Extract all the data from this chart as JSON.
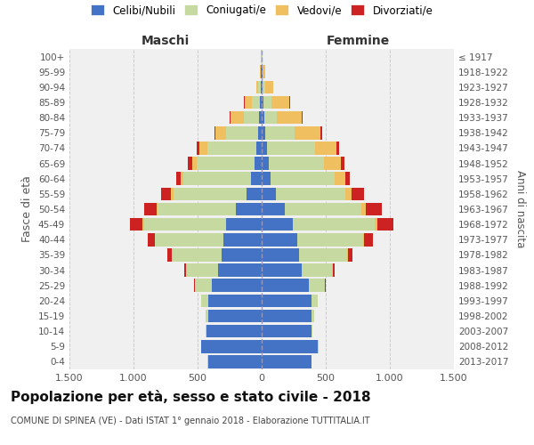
{
  "age_groups": [
    "0-4",
    "5-9",
    "10-14",
    "15-19",
    "20-24",
    "25-29",
    "30-34",
    "35-39",
    "40-44",
    "45-49",
    "50-54",
    "55-59",
    "60-64",
    "65-69",
    "70-74",
    "75-79",
    "80-84",
    "85-89",
    "90-94",
    "95-99",
    "100+"
  ],
  "birth_years": [
    "2013-2017",
    "2008-2012",
    "2003-2007",
    "1998-2002",
    "1993-1997",
    "1988-1992",
    "1983-1987",
    "1978-1982",
    "1973-1977",
    "1968-1972",
    "1963-1967",
    "1958-1962",
    "1953-1957",
    "1948-1952",
    "1943-1947",
    "1938-1942",
    "1933-1937",
    "1928-1932",
    "1923-1927",
    "1918-1922",
    "≤ 1917"
  ],
  "male_celibe": [
    420,
    470,
    430,
    420,
    420,
    390,
    340,
    310,
    300,
    280,
    200,
    120,
    80,
    55,
    45,
    30,
    20,
    15,
    8,
    4,
    2
  ],
  "male_coniugato": [
    3,
    5,
    10,
    20,
    50,
    130,
    250,
    390,
    530,
    640,
    610,
    570,
    530,
    450,
    380,
    250,
    120,
    60,
    20,
    5,
    2
  ],
  "male_vedovo": [
    0,
    0,
    0,
    0,
    0,
    1,
    2,
    3,
    5,
    8,
    10,
    15,
    20,
    40,
    60,
    80,
    100,
    60,
    15,
    3,
    1
  ],
  "male_divorziato": [
    0,
    0,
    0,
    0,
    2,
    5,
    10,
    30,
    55,
    100,
    100,
    80,
    35,
    30,
    20,
    10,
    8,
    5,
    2,
    0,
    0
  ],
  "female_celibe": [
    390,
    440,
    390,
    390,
    390,
    370,
    310,
    290,
    280,
    240,
    180,
    110,
    70,
    55,
    45,
    30,
    20,
    15,
    10,
    5,
    2
  ],
  "female_coniugato": [
    2,
    4,
    8,
    18,
    45,
    120,
    240,
    380,
    510,
    640,
    600,
    540,
    500,
    430,
    370,
    230,
    100,
    60,
    20,
    5,
    2
  ],
  "female_vedovo": [
    0,
    0,
    0,
    0,
    1,
    2,
    3,
    5,
    10,
    20,
    30,
    50,
    80,
    130,
    170,
    200,
    190,
    140,
    60,
    15,
    2
  ],
  "female_divorziato": [
    0,
    0,
    0,
    1,
    3,
    8,
    15,
    35,
    65,
    130,
    130,
    100,
    40,
    30,
    20,
    12,
    8,
    5,
    2,
    0,
    0
  ],
  "color_celibe": "#4472c4",
  "color_coniugato": "#c5d9a0",
  "color_vedovo": "#f0c060",
  "color_divorziato": "#cc2222",
  "title": "Popolazione per età, sesso e stato civile - 2018",
  "subtitle": "COMUNE DI SPINEA (VE) - Dati ISTAT 1° gennaio 2018 - Elaborazione TUTTITALIA.IT",
  "xlabel_left": "Maschi",
  "xlabel_right": "Femmine",
  "ylabel": "Fasce di età",
  "ylabel_right": "Anni di nascita",
  "xlim": 1500,
  "xticklabels": [
    "1.500",
    "1.000",
    "500",
    "0",
    "500",
    "1.000",
    "1.500"
  ],
  "bg_color": "#f0f0f0",
  "grid_color": "#cccccc"
}
